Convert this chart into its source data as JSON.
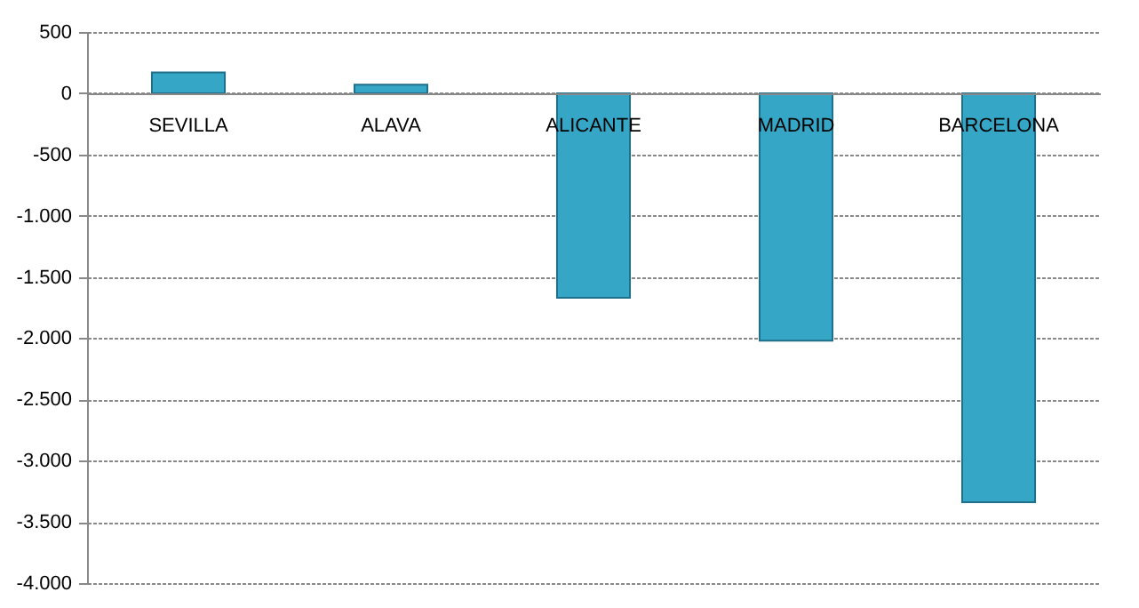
{
  "chart_data": {
    "type": "bar",
    "categories": [
      "SEVILLA",
      "ALAVA",
      "ALICANTE",
      "MADRID",
      "BARCELONA"
    ],
    "values": [
      170,
      70,
      -1670,
      -2020,
      -3340
    ],
    "color": "#35a6c6",
    "ylim": [
      -4000,
      500
    ],
    "yticks": [
      {
        "value": -4000,
        "label": "-4.000"
      },
      {
        "value": -3500,
        "label": "-3.500"
      },
      {
        "value": -3000,
        "label": "-3.000"
      },
      {
        "value": -2500,
        "label": "-2.500"
      },
      {
        "value": -2000,
        "label": "-2.000"
      },
      {
        "value": -1500,
        "label": "-1.500"
      },
      {
        "value": -1000,
        "label": "-1.000"
      },
      {
        "value": -500,
        "label": "-500"
      },
      {
        "value": 0,
        "label": "0"
      },
      {
        "value": 500,
        "label": "500"
      }
    ],
    "grid": true
  }
}
